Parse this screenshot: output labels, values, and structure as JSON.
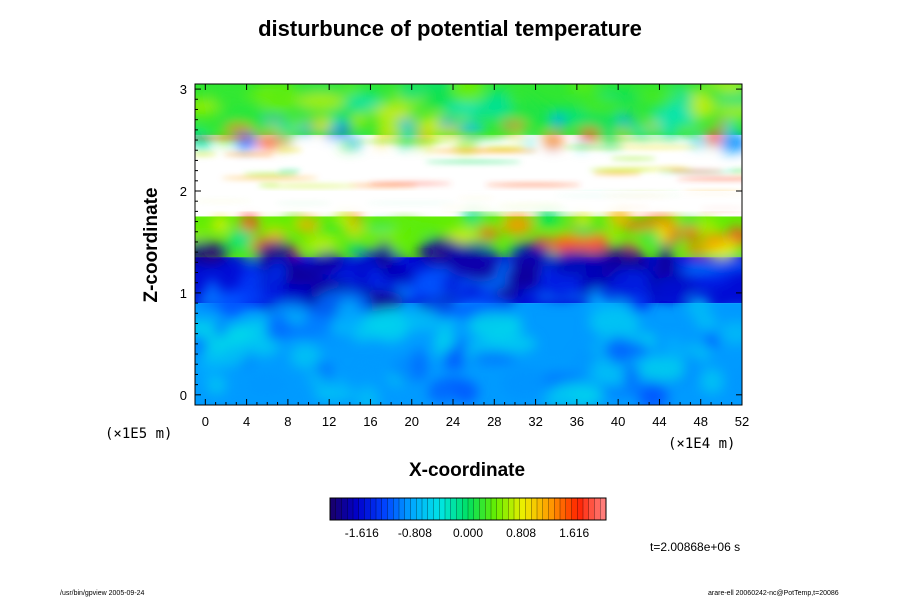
{
  "chart_data": {
    "type": "heatmap",
    "title": "disturbunce of potential temperature",
    "xlabel": "X-coordinate",
    "ylabel": "Z-coordinate",
    "x_unit": "(×1E4 m)",
    "y_unit": "(×1E5 m)",
    "xlim": [
      -1,
      52
    ],
    "ylim": [
      -0.1,
      3.05
    ],
    "x_ticks": [
      0,
      4,
      8,
      12,
      16,
      20,
      24,
      28,
      32,
      36,
      40,
      44,
      48,
      52
    ],
    "y_ticks": [
      0,
      1,
      2,
      3
    ],
    "colorbar": {
      "ticks": [
        "-1.616",
        "-0.808",
        "0.000",
        "0.808",
        "1.616"
      ],
      "range": [
        -2.1,
        2.1
      ],
      "colors": [
        "#1a0066",
        "#0000cc",
        "#0044ff",
        "#00aaff",
        "#00e5e5",
        "#00e060",
        "#66ee00",
        "#eeee00",
        "#ff9900",
        "#ff2200",
        "#ff8888"
      ]
    },
    "field_description_bands": [
      {
        "z_from": 2.55,
        "z_to": 3.05,
        "value": 0.2
      },
      {
        "z_from": 1.75,
        "z_to": 2.55,
        "value": "undefined"
      },
      {
        "z_from": 1.35,
        "z_to": 1.75,
        "value": 0.4
      },
      {
        "z_from": 0.9,
        "z_to": 1.35,
        "value": -1.6
      },
      {
        "z_from": -0.1,
        "z_to": 0.9,
        "value": -0.9
      }
    ]
  },
  "annotations": {
    "time": "t=2.00868e+06 s",
    "footer_left": "/usr/bin/gpview 2005-09-24",
    "footer_right": "arare-ell 20060242-nc@PotTemp,t=20086"
  }
}
